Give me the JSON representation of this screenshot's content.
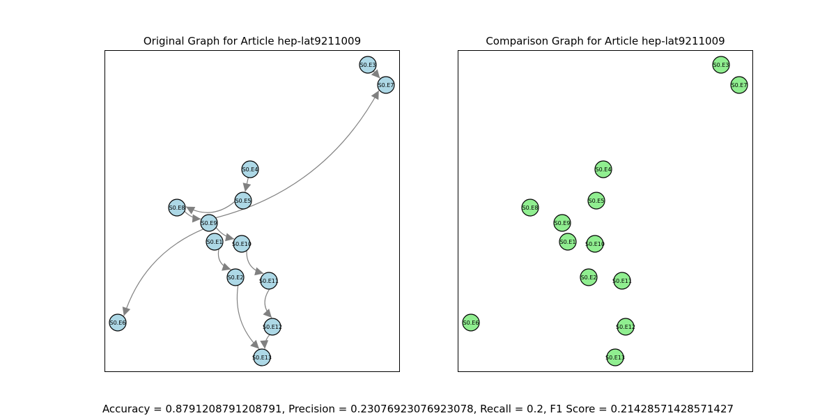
{
  "colors": {
    "original_node": "#add8e6",
    "comparison_node": "#90ee90",
    "edge": "#808080",
    "node_stroke": "#000000"
  },
  "panels": [
    {
      "id": "original",
      "title": "Original Graph for Article hep-lat9211009",
      "nodes": [
        "S0.E3",
        "S0.E7",
        "S0.E4",
        "S0.E5",
        "S0.E8",
        "S0.E9",
        "S0.E1",
        "S0.E10",
        "S0.E2",
        "S0.E11",
        "S0.E6",
        "S0.E12",
        "S0.E13"
      ],
      "edges": [
        [
          "S0.E3",
          "S0.E7"
        ],
        [
          "S0.E4",
          "S0.E5"
        ],
        [
          "S0.E5",
          "S0.E8"
        ],
        [
          "S0.E8",
          "S0.E9"
        ],
        [
          "S0.E9",
          "S0.E10"
        ],
        [
          "S0.E9",
          "S0.E7"
        ],
        [
          "S0.E9",
          "S0.E6"
        ],
        [
          "S0.E1",
          "S0.E2"
        ],
        [
          "S0.E10",
          "S0.E11"
        ],
        [
          "S0.E11",
          "S0.E12"
        ],
        [
          "S0.E12",
          "S0.E13"
        ],
        [
          "S0.E2",
          "S0.E13"
        ]
      ]
    },
    {
      "id": "comparison",
      "title": "Comparison Graph for Article hep-lat9211009",
      "nodes": [
        "S0.E3",
        "S0.E7",
        "S0.E4",
        "S0.E5",
        "S0.E8",
        "S0.E9",
        "S0.E1",
        "S0.E10",
        "S0.E2",
        "S0.E11",
        "S0.E6",
        "S0.E12",
        "S0.E13"
      ],
      "edges": []
    }
  ],
  "metrics_text": "Accuracy = 0.8791208791208791, Precision = 0.23076923076923078, Recall = 0.2, F1 Score = 0.21428571428571427"
}
